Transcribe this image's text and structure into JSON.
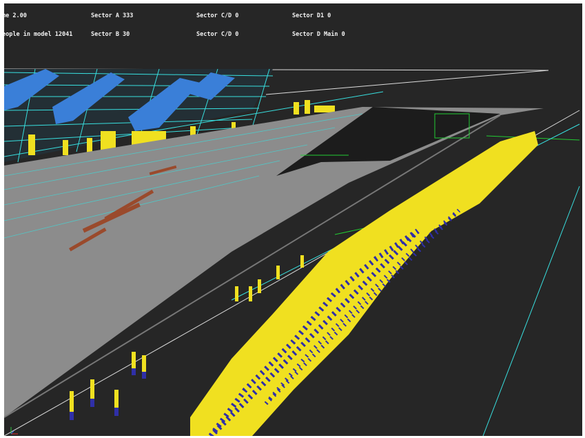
{
  "hud": {
    "col1": [
      "me 2.00",
      "eople in model 12041"
    ],
    "col2": [
      "Sector A 333",
      "Sector B 30"
    ],
    "col3": [
      "Sector C/D 0",
      "Sector C/D 0"
    ],
    "col4": [
      "Sector D1 0",
      "Sector D Main 0"
    ]
  },
  "colors": {
    "background": "#262626",
    "concourse": "#8c8c8c",
    "wireframe": "#38e0e0",
    "guide_green": "#22cc33",
    "agent_body": "#f0e020",
    "agent_legs": "#2f2fa8",
    "seated_agent": "#3a7fd8",
    "waiting_marker": "#9a4a2c"
  },
  "icons": {
    "axis_gizmo": "xyz-axis-icon"
  }
}
